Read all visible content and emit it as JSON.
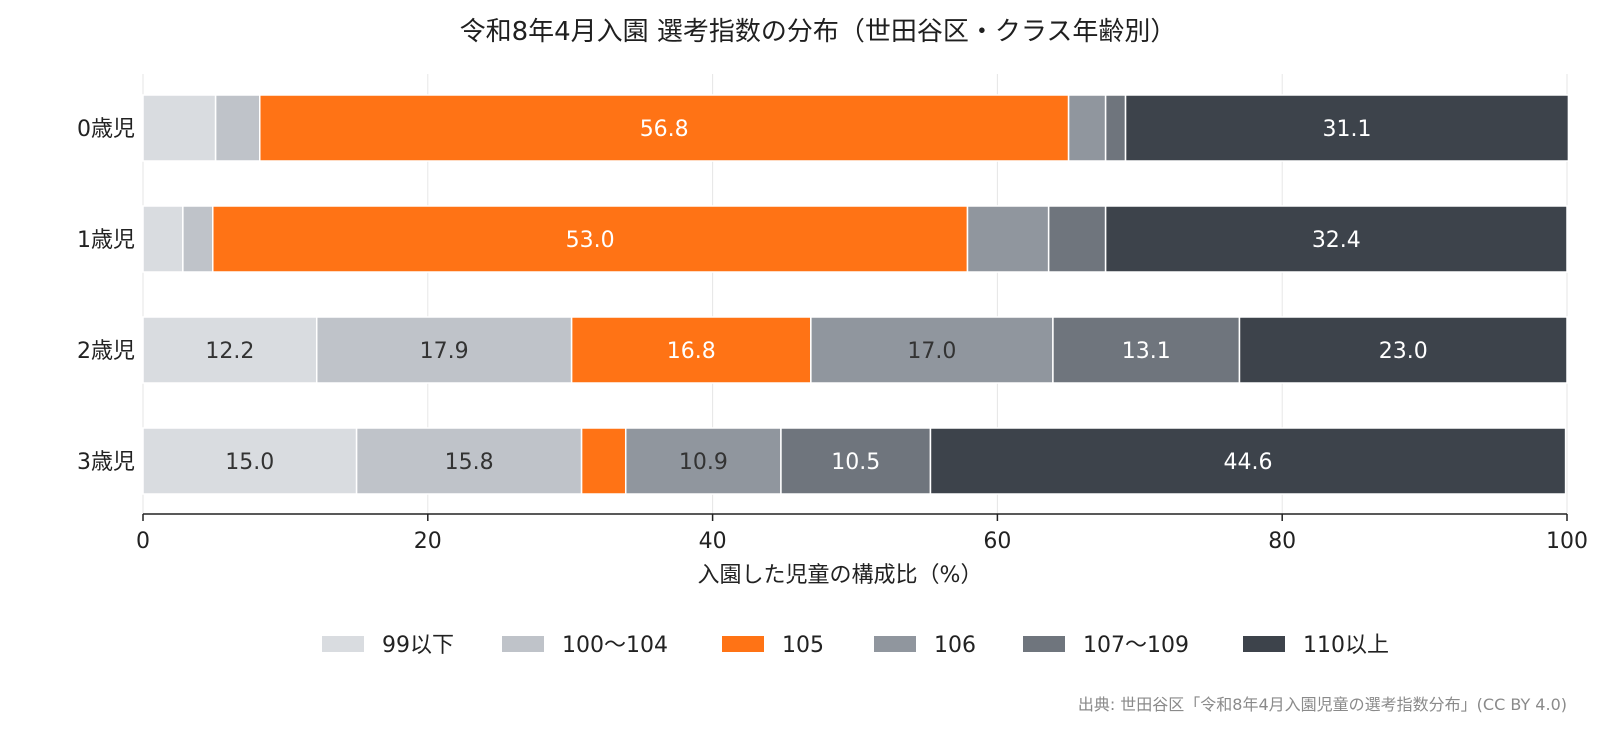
{
  "chart_data": {
    "type": "bar",
    "orientation": "horizontal",
    "stacked": true,
    "title": "令和8年4月入園 選考指数の分布（世田谷区・クラス年齢別）",
    "xlabel": "入園した児童の構成比（%）",
    "ylabel": "",
    "xlim": [
      0,
      100
    ],
    "x_ticks": [
      0,
      20,
      40,
      60,
      80,
      100
    ],
    "grid": "vertical",
    "legend_position": "bottom",
    "categories": [
      "0歳児",
      "1歳児",
      "2歳児",
      "3歳児"
    ],
    "series": [
      {
        "name": "99以下",
        "color": "#d9dce0",
        "label_color": "#333333",
        "values": [
          5.1,
          2.8,
          12.2,
          15.0
        ]
      },
      {
        "name": "100〜104",
        "color": "#bfc3c9",
        "label_color": "#333333",
        "values": [
          3.1,
          2.1,
          17.9,
          15.8
        ]
      },
      {
        "name": "105",
        "color": "#ff7315",
        "label_color": "#ffffff",
        "values": [
          56.8,
          53.0,
          16.8,
          3.1
        ]
      },
      {
        "name": "106",
        "color": "#90969e",
        "label_color": "#333333",
        "values": [
          2.6,
          5.7,
          17.0,
          10.9
        ]
      },
      {
        "name": "107〜109",
        "color": "#6f757d",
        "label_color": "#ffffff",
        "values": [
          1.4,
          4.0,
          13.1,
          10.5
        ]
      },
      {
        "name": "110以上",
        "color": "#3d434b",
        "label_color": "#ffffff",
        "values": [
          31.1,
          32.4,
          23.0,
          44.6
        ]
      }
    ],
    "data_labels": [
      [
        "",
        "",
        "56.8",
        "",
        "",
        "31.1"
      ],
      [
        "",
        "",
        "53.0",
        "",
        "",
        "32.4"
      ],
      [
        "12.2",
        "17.9",
        "16.8",
        "17.0",
        "13.1",
        "23.0"
      ],
      [
        "15.0",
        "15.8",
        "",
        "10.9",
        "10.5",
        "44.6"
      ]
    ],
    "source": "出典: 世田谷区「令和8年4月入園児童の選考指数分布」(CC BY 4.0)"
  }
}
